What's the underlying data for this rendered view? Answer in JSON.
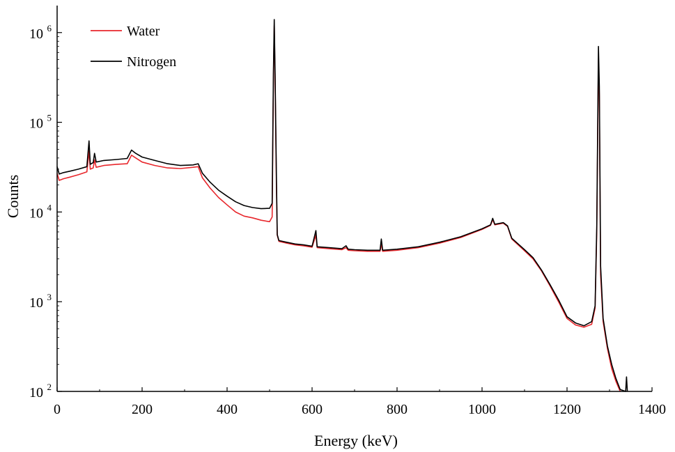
{
  "chart_data": {
    "type": "line",
    "xlabel": "Energy  (keV)",
    "ylabel": "Counts",
    "x_scale": "linear",
    "y_scale": "log",
    "xlim": [
      0,
      1400
    ],
    "ylim": [
      100,
      2000000
    ],
    "x_ticks": [
      0,
      200,
      400,
      600,
      800,
      1000,
      1200,
      1400
    ],
    "x_tick_labels": [
      "0",
      "200",
      "400",
      "600",
      "800",
      "1000",
      "1200",
      "1400"
    ],
    "y_ticks": [
      {
        "value": 100,
        "base": "10",
        "exp": "2"
      },
      {
        "value": 1000,
        "base": "10",
        "exp": "3"
      },
      {
        "value": 10000,
        "base": "10",
        "exp": "4"
      },
      {
        "value": 100000,
        "base": "10",
        "exp": "5"
      },
      {
        "value": 1000000,
        "base": "10",
        "exp": "6"
      }
    ],
    "grid": false,
    "legend_position": "top-left",
    "series": [
      {
        "name": "Water",
        "color": "#e8262b",
        "points": [
          [
            0,
            27000
          ],
          [
            5,
            22500
          ],
          [
            15,
            23500
          ],
          [
            30,
            24500
          ],
          [
            50,
            26000
          ],
          [
            70,
            28000
          ],
          [
            75,
            48000
          ],
          [
            78,
            30000
          ],
          [
            85,
            31000
          ],
          [
            88,
            38000
          ],
          [
            92,
            31500
          ],
          [
            110,
            33000
          ],
          [
            140,
            34000
          ],
          [
            165,
            34500
          ],
          [
            175,
            43000
          ],
          [
            185,
            40000
          ],
          [
            200,
            36000
          ],
          [
            230,
            33000
          ],
          [
            260,
            31000
          ],
          [
            290,
            30500
          ],
          [
            320,
            31500
          ],
          [
            332,
            32000
          ],
          [
            342,
            24000
          ],
          [
            360,
            18500
          ],
          [
            380,
            14500
          ],
          [
            400,
            12000
          ],
          [
            420,
            10000
          ],
          [
            440,
            9000
          ],
          [
            460,
            8600
          ],
          [
            480,
            8100
          ],
          [
            500,
            7800
          ],
          [
            506,
            8800
          ],
          [
            509,
            300000
          ],
          [
            511,
            1200000
          ],
          [
            513,
            300000
          ],
          [
            516,
            20000
          ],
          [
            518,
            5500
          ],
          [
            522,
            4700
          ],
          [
            540,
            4500
          ],
          [
            560,
            4300
          ],
          [
            580,
            4200
          ],
          [
            600,
            4050
          ],
          [
            609,
            5500
          ],
          [
            612,
            4000
          ],
          [
            640,
            3900
          ],
          [
            670,
            3800
          ],
          [
            680,
            4000
          ],
          [
            685,
            3750
          ],
          [
            700,
            3700
          ],
          [
            730,
            3650
          ],
          [
            760,
            3650
          ],
          [
            763,
            4400
          ],
          [
            766,
            3650
          ],
          [
            800,
            3750
          ],
          [
            850,
            4000
          ],
          [
            900,
            4500
          ],
          [
            950,
            5200
          ],
          [
            1000,
            6400
          ],
          [
            1020,
            7100
          ],
          [
            1025,
            8200
          ],
          [
            1030,
            7200
          ],
          [
            1050,
            7500
          ],
          [
            1060,
            6900
          ],
          [
            1070,
            5000
          ],
          [
            1085,
            4300
          ],
          [
            1100,
            3700
          ],
          [
            1120,
            3000
          ],
          [
            1140,
            2200
          ],
          [
            1160,
            1500
          ],
          [
            1180,
            1000
          ],
          [
            1200,
            650
          ],
          [
            1220,
            550
          ],
          [
            1240,
            520
          ],
          [
            1258,
            560
          ],
          [
            1266,
            850
          ],
          [
            1270,
            6000
          ],
          [
            1274,
            500000
          ],
          [
            1276,
            200000
          ],
          [
            1279,
            2000
          ],
          [
            1285,
            600
          ],
          [
            1295,
            300
          ],
          [
            1305,
            180
          ],
          [
            1315,
            130
          ],
          [
            1325,
            100
          ]
        ]
      },
      {
        "name": "Nitrogen",
        "color": "#000000",
        "points": [
          [
            0,
            32000
          ],
          [
            5,
            26500
          ],
          [
            15,
            27500
          ],
          [
            30,
            28500
          ],
          [
            50,
            30000
          ],
          [
            70,
            32000
          ],
          [
            75,
            62000
          ],
          [
            78,
            34000
          ],
          [
            85,
            35500
          ],
          [
            88,
            45000
          ],
          [
            92,
            36000
          ],
          [
            110,
            37500
          ],
          [
            140,
            38500
          ],
          [
            165,
            39500
          ],
          [
            175,
            49000
          ],
          [
            185,
            45000
          ],
          [
            200,
            41000
          ],
          [
            230,
            37500
          ],
          [
            260,
            34500
          ],
          [
            290,
            33000
          ],
          [
            320,
            33500
          ],
          [
            332,
            34500
          ],
          [
            342,
            27000
          ],
          [
            360,
            21500
          ],
          [
            380,
            17500
          ],
          [
            400,
            15000
          ],
          [
            420,
            13000
          ],
          [
            440,
            11800
          ],
          [
            460,
            11200
          ],
          [
            480,
            10900
          ],
          [
            500,
            11000
          ],
          [
            506,
            12500
          ],
          [
            509,
            350000
          ],
          [
            511,
            1400000
          ],
          [
            513,
            350000
          ],
          [
            516,
            25000
          ],
          [
            518,
            5600
          ],
          [
            522,
            4800
          ],
          [
            540,
            4600
          ],
          [
            560,
            4400
          ],
          [
            580,
            4300
          ],
          [
            600,
            4150
          ],
          [
            609,
            6200
          ],
          [
            612,
            4100
          ],
          [
            640,
            4000
          ],
          [
            670,
            3900
          ],
          [
            680,
            4200
          ],
          [
            685,
            3850
          ],
          [
            700,
            3800
          ],
          [
            730,
            3750
          ],
          [
            760,
            3750
          ],
          [
            763,
            5000
          ],
          [
            766,
            3750
          ],
          [
            800,
            3850
          ],
          [
            850,
            4100
          ],
          [
            900,
            4600
          ],
          [
            950,
            5300
          ],
          [
            1000,
            6500
          ],
          [
            1020,
            7200
          ],
          [
            1025,
            8500
          ],
          [
            1030,
            7300
          ],
          [
            1050,
            7600
          ],
          [
            1060,
            7000
          ],
          [
            1070,
            5100
          ],
          [
            1085,
            4400
          ],
          [
            1100,
            3800
          ],
          [
            1120,
            3100
          ],
          [
            1140,
            2250
          ],
          [
            1160,
            1550
          ],
          [
            1180,
            1050
          ],
          [
            1200,
            680
          ],
          [
            1220,
            580
          ],
          [
            1240,
            540
          ],
          [
            1258,
            600
          ],
          [
            1266,
            900
          ],
          [
            1270,
            7000
          ],
          [
            1274,
            700000
          ],
          [
            1276,
            250000
          ],
          [
            1279,
            2500
          ],
          [
            1285,
            650
          ],
          [
            1295,
            320
          ],
          [
            1305,
            200
          ],
          [
            1315,
            140
          ],
          [
            1325,
            105
          ],
          [
            1338,
            100
          ],
          [
            1340,
            145
          ],
          [
            1342,
            100
          ]
        ]
      }
    ]
  }
}
